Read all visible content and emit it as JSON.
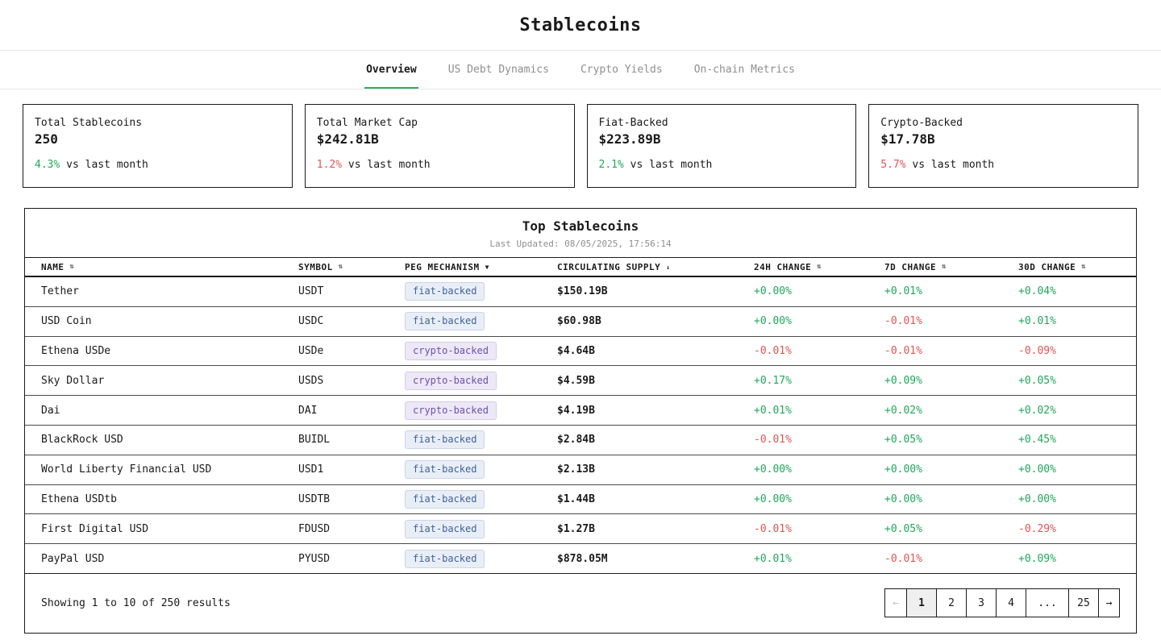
{
  "page": {
    "title": "Stablecoins"
  },
  "tabs": [
    {
      "label": "Overview",
      "active": true
    },
    {
      "label": "US Debt Dynamics",
      "active": false
    },
    {
      "label": "Crypto Yields",
      "active": false
    },
    {
      "label": "On-chain Metrics",
      "active": false
    }
  ],
  "stats": [
    {
      "label": "Total Stablecoins",
      "value": "250",
      "change": "4.3%",
      "trend": "up",
      "suffix": " vs last month"
    },
    {
      "label": "Total Market Cap",
      "value": "$242.81B",
      "change": "1.2%",
      "trend": "down",
      "suffix": " vs last month"
    },
    {
      "label": "Fiat-Backed",
      "value": "$223.89B",
      "change": "2.1%",
      "trend": "up",
      "suffix": " vs last month"
    },
    {
      "label": "Crypto-Backed",
      "value": "$17.78B",
      "change": "5.7%",
      "trend": "down",
      "suffix": " vs last month"
    }
  ],
  "table": {
    "title": "Top Stablecoins",
    "last_updated": "Last Updated: 08/05/2025, 17:56:14",
    "columns": [
      {
        "label": "NAME",
        "sort_icon": "updown"
      },
      {
        "label": "SYMBOL",
        "sort_icon": "updown"
      },
      {
        "label": "PEG MECHANISM",
        "sort_icon": "desc-triangle"
      },
      {
        "label": "CIRCULATING SUPPLY",
        "sort_icon": "down-arrow"
      },
      {
        "label": "24H CHANGE",
        "sort_icon": "updown"
      },
      {
        "label": "7D CHANGE",
        "sort_icon": "updown"
      },
      {
        "label": "30D CHANGE",
        "sort_icon": "updown"
      }
    ],
    "rows": [
      {
        "name": "Tether",
        "symbol": "USDT",
        "peg": "fiat-backed",
        "supply": "$150.19B",
        "change_24h": "+0.00%",
        "change_7d": "+0.01%",
        "change_30d": "+0.04%"
      },
      {
        "name": "USD Coin",
        "symbol": "USDC",
        "peg": "fiat-backed",
        "supply": "$60.98B",
        "change_24h": "+0.00%",
        "change_7d": "-0.01%",
        "change_30d": "+0.01%"
      },
      {
        "name": "Ethena USDe",
        "symbol": "USDe",
        "peg": "crypto-backed",
        "supply": "$4.64B",
        "change_24h": "-0.01%",
        "change_7d": "-0.01%",
        "change_30d": "-0.09%"
      },
      {
        "name": "Sky Dollar",
        "symbol": "USDS",
        "peg": "crypto-backed",
        "supply": "$4.59B",
        "change_24h": "+0.17%",
        "change_7d": "+0.09%",
        "change_30d": "+0.05%"
      },
      {
        "name": "Dai",
        "symbol": "DAI",
        "peg": "crypto-backed",
        "supply": "$4.19B",
        "change_24h": "+0.01%",
        "change_7d": "+0.02%",
        "change_30d": "+0.02%"
      },
      {
        "name": "BlackRock USD",
        "symbol": "BUIDL",
        "peg": "fiat-backed",
        "supply": "$2.84B",
        "change_24h": "-0.01%",
        "change_7d": "+0.05%",
        "change_30d": "+0.45%"
      },
      {
        "name": "World Liberty Financial USD",
        "symbol": "USD1",
        "peg": "fiat-backed",
        "supply": "$2.13B",
        "change_24h": "+0.00%",
        "change_7d": "+0.00%",
        "change_30d": "+0.00%"
      },
      {
        "name": "Ethena USDtb",
        "symbol": "USDTB",
        "peg": "fiat-backed",
        "supply": "$1.44B",
        "change_24h": "+0.00%",
        "change_7d": "+0.00%",
        "change_30d": "+0.00%"
      },
      {
        "name": "First Digital USD",
        "symbol": "FDUSD",
        "peg": "fiat-backed",
        "supply": "$1.27B",
        "change_24h": "-0.01%",
        "change_7d": "+0.05%",
        "change_30d": "-0.29%"
      },
      {
        "name": "PayPal USD",
        "symbol": "PYUSD",
        "peg": "fiat-backed",
        "supply": "$878.05M",
        "change_24h": "+0.01%",
        "change_7d": "-0.01%",
        "change_30d": "+0.09%"
      }
    ]
  },
  "pagination": {
    "summary": "Showing 1 to 10 of 250 results",
    "buttons": [
      {
        "label": "←",
        "kind": "prev-page",
        "disabled": true,
        "active": false
      },
      {
        "label": "1",
        "kind": "page-1",
        "disabled": false,
        "active": true
      },
      {
        "label": "2",
        "kind": "page-2",
        "disabled": false,
        "active": false
      },
      {
        "label": "3",
        "kind": "page-3",
        "disabled": false,
        "active": false
      },
      {
        "label": "4",
        "kind": "page-4",
        "disabled": false,
        "active": false
      },
      {
        "label": "...",
        "kind": "ellipsis",
        "disabled": false,
        "active": false
      },
      {
        "label": "25",
        "kind": "page-25",
        "disabled": false,
        "active": false
      },
      {
        "label": "→",
        "kind": "next-page",
        "disabled": false,
        "active": false
      }
    ]
  },
  "colors": {
    "accent_green": "#27b15e",
    "positive_green": "#22a75d",
    "negative_red": "#e25555",
    "fiat_badge_bg": "#e9eef6",
    "fiat_badge_text": "#3f639e",
    "crypto_badge_bg": "#ece8f6",
    "crypto_badge_text": "#7050a8"
  }
}
